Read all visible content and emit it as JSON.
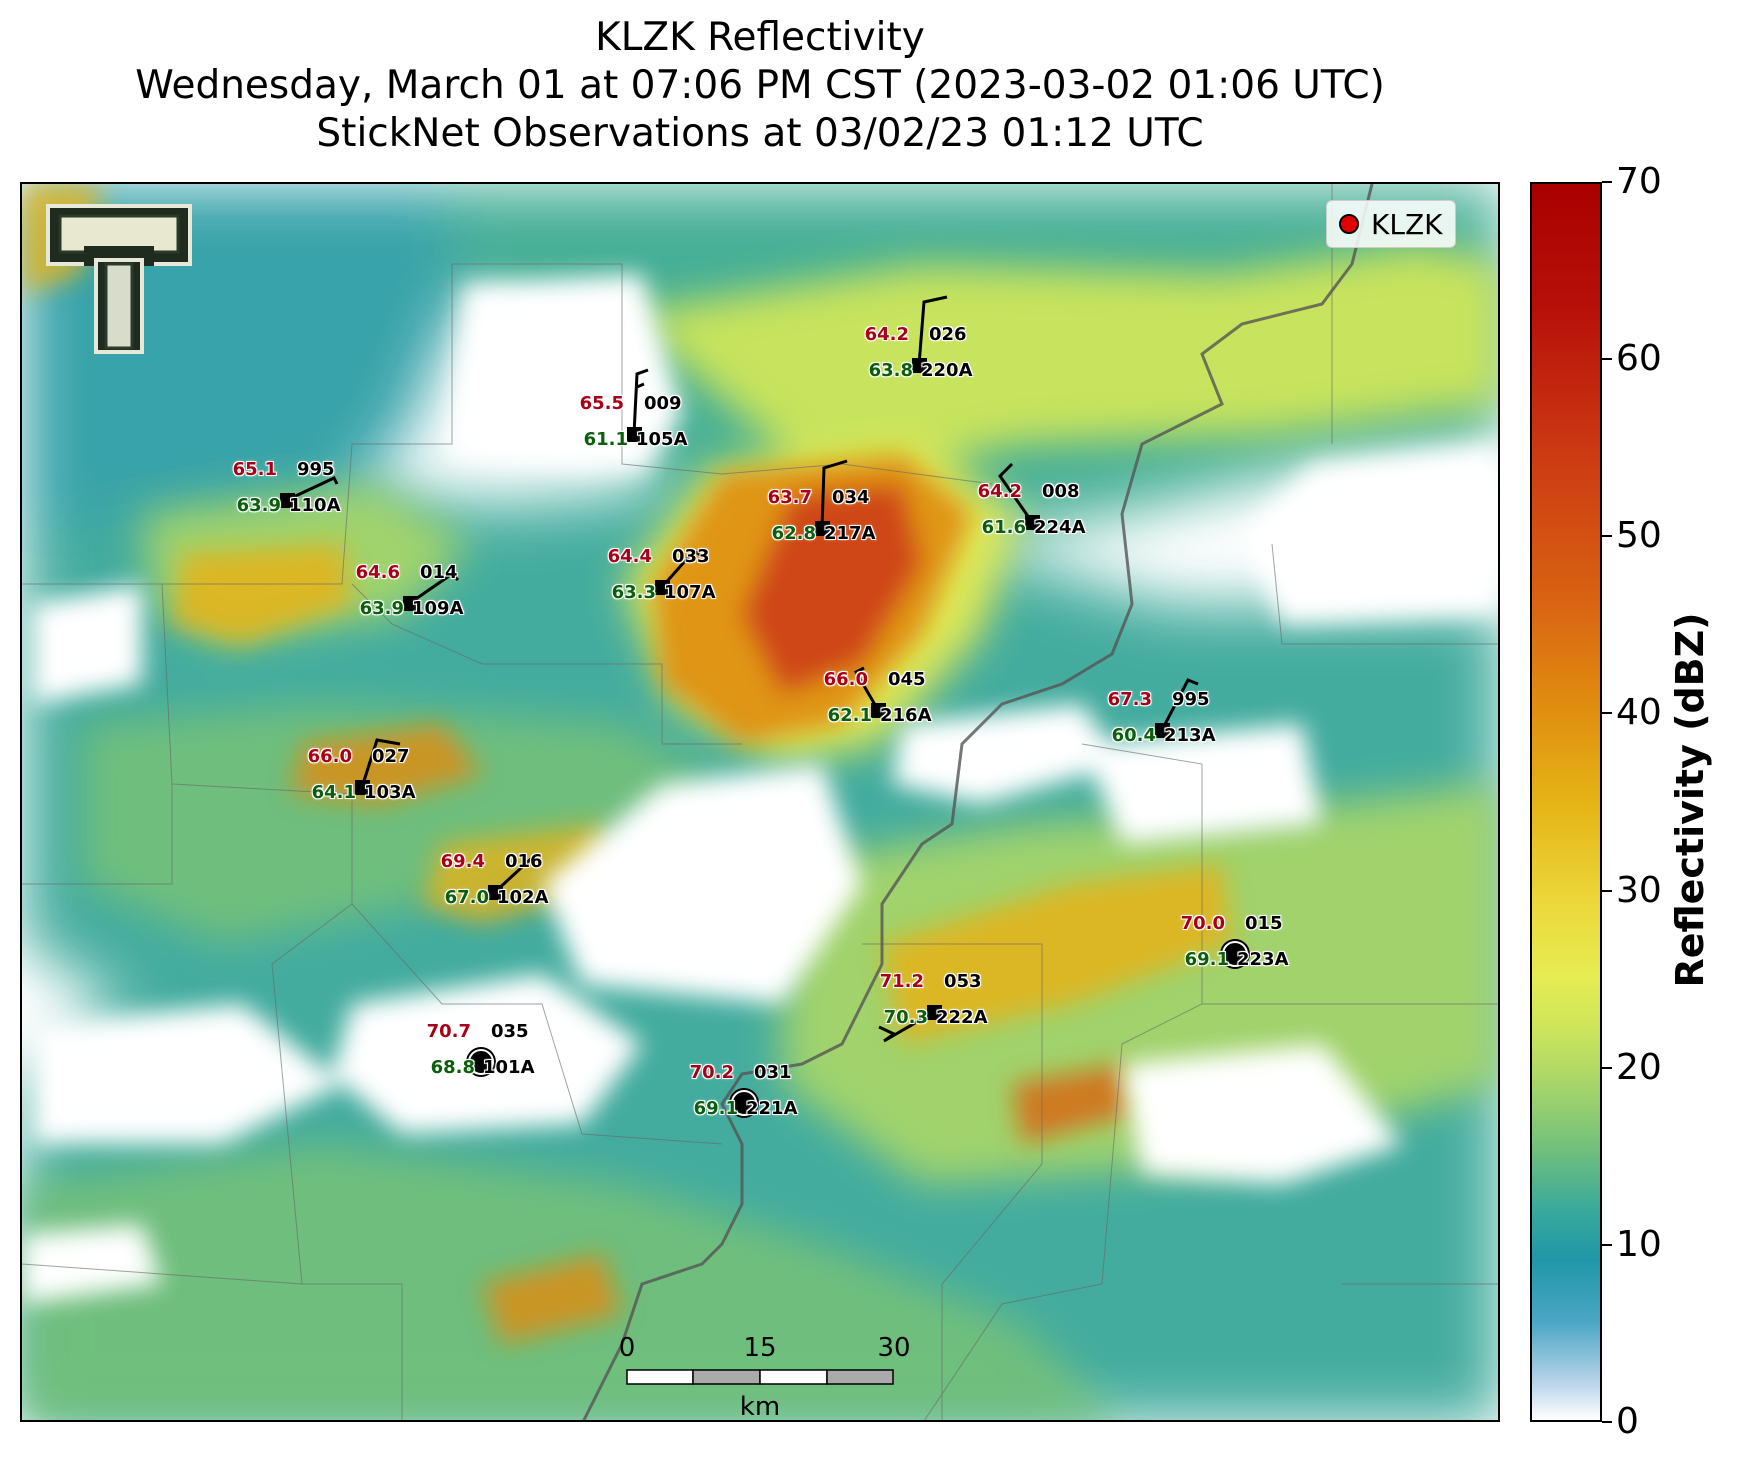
{
  "header": {
    "title_line1": "KLZK Reflectivity",
    "title_line2": "Wednesday, March 01 at 07:06 PM CST (2023-03-02 01:06 UTC)",
    "title_line3": "StickNet Observations at 03/02/23 01:12 UTC"
  },
  "legend": {
    "label": "KLZK",
    "marker_color": "#e00000"
  },
  "colorbar": {
    "label": "Reflectivity (dBZ)",
    "ticks": [
      "0",
      "10",
      "20",
      "30",
      "40",
      "50",
      "60",
      "70"
    ],
    "min": 0,
    "max": 70
  },
  "scale_bar": {
    "ticks": [
      "0",
      "15",
      "30"
    ],
    "unit": "km"
  },
  "logo": {
    "name": "texas-tech-double-t-logo"
  },
  "stations": [
    {
      "id": "220A",
      "temp": "64.2",
      "dew": "63.8",
      "code": "026"
    },
    {
      "id": "105A",
      "temp": "65.5",
      "dew": "61.1",
      "code": "009"
    },
    {
      "id": "110A",
      "temp": "65.1",
      "dew": "63.9",
      "code": "995"
    },
    {
      "id": "217A",
      "temp": "63.7",
      "dew": "62.8",
      "code": "034"
    },
    {
      "id": "224A",
      "temp": "64.2",
      "dew": "61.6",
      "code": "008"
    },
    {
      "id": "107A",
      "temp": "64.4",
      "dew": "63.3",
      "code": "033"
    },
    {
      "id": "109A",
      "temp": "64.6",
      "dew": "63.9",
      "code": "014"
    },
    {
      "id": "216A",
      "temp": "66.0",
      "dew": "62.1",
      "code": "045"
    },
    {
      "id": "213A",
      "temp": "67.3",
      "dew": "60.4",
      "code": "995"
    },
    {
      "id": "103A",
      "temp": "66.0",
      "dew": "64.1",
      "code": "027"
    },
    {
      "id": "102A",
      "temp": "69.4",
      "dew": "67.0",
      "code": "016"
    },
    {
      "id": "223A",
      "temp": "70.0",
      "dew": "69.1",
      "code": "015"
    },
    {
      "id": "222A",
      "temp": "71.2",
      "dew": "70.3",
      "code": "053"
    },
    {
      "id": "101A",
      "temp": "70.7",
      "dew": "68.8",
      "code": "035"
    },
    {
      "id": "221A",
      "temp": "70.2",
      "dew": "69.1",
      "code": "031"
    }
  ]
}
